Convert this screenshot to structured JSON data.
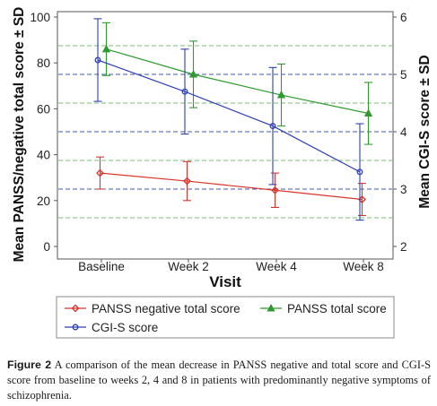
{
  "chart_data": {
    "type": "line",
    "categories": [
      "Baseline",
      "Week 2",
      "Week 4",
      "Week 8"
    ],
    "xlabel": "Visit",
    "ylabel_left": "Mean PANSS/negative total score ± SD",
    "ylabel_right": "Mean CGI-S score ± SD",
    "ylim_left": [
      0,
      100
    ],
    "yticks_left": [
      "0",
      "20",
      "40",
      "60",
      "80",
      "100"
    ],
    "ylim_right": [
      2,
      6
    ],
    "yticks_right": [
      "2",
      "3",
      "4",
      "5",
      "6"
    ],
    "grid": "dashed horizontal",
    "legend_position": "bottom",
    "series": [
      {
        "name": "PANSS negative total score",
        "axis": "left",
        "color": "#d9342b",
        "marker": "diamond",
        "values": [
          32,
          28.5,
          24.5,
          20.5
        ],
        "sd": [
          7,
          8.5,
          7.5,
          7
        ]
      },
      {
        "name": "PANSS  total score",
        "axis": "left",
        "color": "#2f9a2f",
        "marker": "triangle",
        "values": [
          86,
          75,
          66,
          58
        ],
        "sd": [
          11.5,
          14.5,
          13.5,
          13.5
        ]
      },
      {
        "name": "CGI-S score",
        "axis": "right",
        "color": "#2c3fb5",
        "marker": "circle",
        "values": [
          5.25,
          4.7,
          4.1,
          3.3
        ],
        "sd": [
          0.72,
          0.74,
          1.02,
          0.84
        ]
      }
    ]
  },
  "caption": {
    "label": "Figure 2",
    "text": "A comparison of the mean decrease in PANSS negative and total score and CGI-S score from baseline to weeks 2, 4 and 8 in patients with predominantly negative symptoms of schizophrenia."
  }
}
